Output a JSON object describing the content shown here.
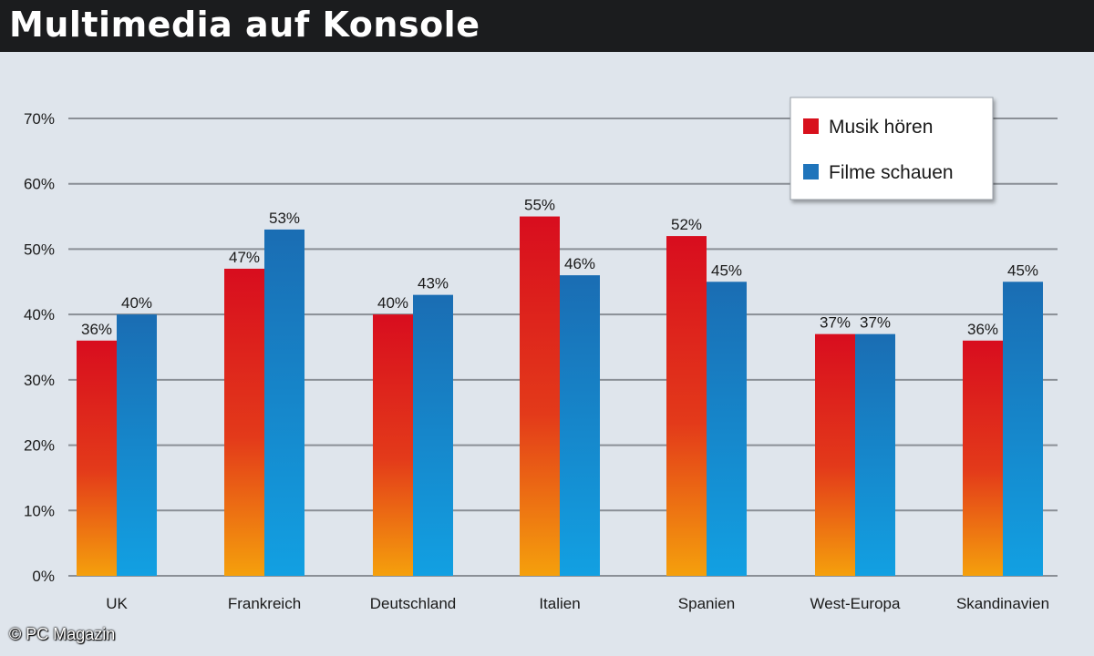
{
  "title": "Multimedia auf Konsole",
  "credit": "© PC Magazin",
  "chart_data": {
    "type": "bar",
    "title": "Multimedia auf Konsole",
    "xlabel": "",
    "ylabel": "",
    "ylim": [
      0,
      70
    ],
    "yticks": [
      0,
      10,
      20,
      30,
      40,
      50,
      60,
      70
    ],
    "ytick_labels": [
      "0%",
      "10%",
      "20%",
      "30%",
      "40%",
      "50%",
      "60%",
      "70%"
    ],
    "grid": true,
    "legend_position": "top-right",
    "categories": [
      "UK",
      "Frankreich",
      "Deutschland",
      "Italien",
      "Spanien",
      "West-Europa",
      "Skandinavien"
    ],
    "series": [
      {
        "name": "Musik hören",
        "color": "#d8101c",
        "values": [
          36,
          47,
          40,
          55,
          52,
          37,
          36
        ],
        "labels": [
          "36%",
          "47%",
          "40%",
          "55%",
          "52%",
          "37%",
          "36%"
        ]
      },
      {
        "name": "Filme schauen",
        "color": "#1f74bb",
        "values": [
          40,
          53,
          43,
          46,
          45,
          37,
          45
        ],
        "labels": [
          "40%",
          "53%",
          "43%",
          "46%",
          "45%",
          "37%",
          "45%"
        ]
      }
    ]
  }
}
